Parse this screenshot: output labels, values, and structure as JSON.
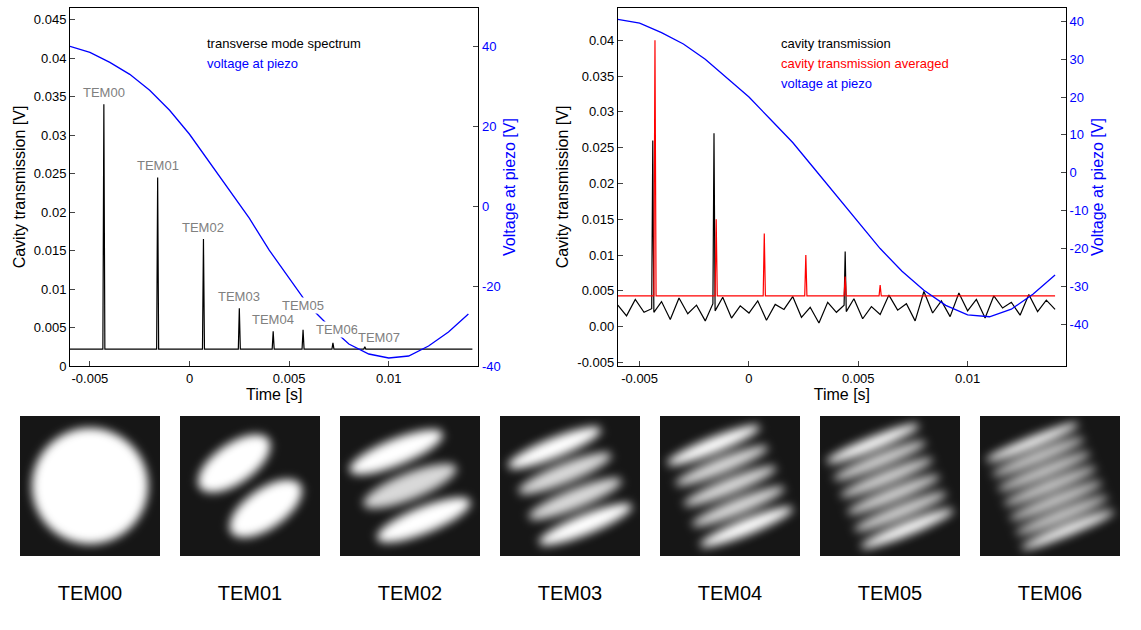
{
  "chart_data": [
    {
      "type": "line",
      "x_label": "Time [s]",
      "y_label": "Cavity transmission [V]",
      "y2_label": "Voltage at piezo [V]",
      "xlim": [
        -0.006,
        0.0145
      ],
      "xticks": [
        -0.005,
        0,
        0.005,
        0.01
      ],
      "ylim": [
        0,
        0.0465
      ],
      "yticks": [
        0,
        0.005,
        0.01,
        0.015,
        0.02,
        0.025,
        0.03,
        0.035,
        0.04,
        0.045
      ],
      "y2lim": [
        -40,
        49.6
      ],
      "y2ticks": [
        -40,
        -20,
        0,
        20,
        40
      ],
      "grid": false,
      "series": [
        {
          "name": "transverse mode spectrum",
          "color": "#000000",
          "x": [
            -0.006,
            -0.00435,
            -0.0043,
            -0.00425,
            -0.00165,
            -0.0016,
            -0.00155,
            0.00065,
            0.0007,
            0.00075,
            0.00245,
            0.0025,
            0.00255,
            0.00415,
            0.0042,
            0.00425,
            0.00565,
            0.0057,
            0.00575,
            0.00715,
            0.0072,
            0.00725,
            0.00875,
            0.0088,
            0.00885,
            0.0142
          ],
          "values": [
            0.0022,
            0.0022,
            0.034,
            0.0022,
            0.0022,
            0.0245,
            0.0022,
            0.0022,
            0.0165,
            0.0022,
            0.0022,
            0.0075,
            0.0022,
            0.0022,
            0.0045,
            0.0022,
            0.0022,
            0.0047,
            0.0022,
            0.0022,
            0.003,
            0.0022,
            0.0022,
            0.0025,
            0.0022,
            0.0022
          ]
        },
        {
          "name": "voltage at piezo",
          "color": "#0000ff",
          "axis": "y2",
          "x": [
            -0.006,
            -0.005,
            -0.004,
            -0.003,
            -0.002,
            -0.001,
            0,
            0.001,
            0.002,
            0.003,
            0.004,
            0.005,
            0.006,
            0.007,
            0.008,
            0.009,
            0.01,
            0.011,
            0.012,
            0.013,
            0.014
          ],
          "values": [
            40,
            38.5,
            36,
            33,
            29,
            24,
            18,
            11,
            4,
            -3,
            -11,
            -18,
            -25,
            -30,
            -34.5,
            -37,
            -38,
            -37.5,
            -35,
            -31.5,
            -27
          ]
        }
      ],
      "annotations": [
        {
          "text": "TEM00",
          "x": -0.0043,
          "y": 0.0355
        },
        {
          "text": "TEM01",
          "x": -0.0016,
          "y": 0.026
        },
        {
          "text": "TEM02",
          "x": 0.0007,
          "y": 0.018
        },
        {
          "text": "TEM03",
          "x": 0.0025,
          "y": 0.009
        },
        {
          "text": "TEM04",
          "x": 0.0042,
          "y": 0.006
        },
        {
          "text": "TEM05",
          "x": 0.0057,
          "y": 0.0078
        },
        {
          "text": "TEM06",
          "x": 0.0074,
          "y": 0.0048
        },
        {
          "text": "TEM07",
          "x": 0.0095,
          "y": 0.0037
        }
      ]
    },
    {
      "type": "line",
      "x_label": "Time [s]",
      "y_label": "Cavity transmission [V]",
      "y2_label": "Voltage at piezo [V]",
      "xlim": [
        -0.006,
        0.0145
      ],
      "xticks": [
        -0.005,
        0,
        0.005,
        0.01
      ],
      "ylim": [
        -0.0055,
        0.0445
      ],
      "yticks": [
        -0.005,
        {
          "value": 0,
          "label": "0.00"
        },
        0.005,
        0.01,
        0.015,
        0.02,
        0.025,
        0.03,
        0.035,
        0.04
      ],
      "y2lim": [
        -51,
        43.5
      ],
      "y2ticks": [
        -40,
        -30,
        -20,
        -10,
        0,
        10,
        20,
        30,
        40
      ],
      "grid": false,
      "series": [
        {
          "name": "cavity transmission",
          "color": "#000000",
          "x": [
            -0.006,
            -0.0056,
            -0.0052,
            -0.0048,
            -0.00445,
            -0.0044,
            -0.00435,
            -0.004,
            -0.0036,
            -0.0032,
            -0.0028,
            -0.0024,
            -0.002,
            -0.00165,
            -0.0016,
            -0.00155,
            -0.0012,
            -0.0008,
            -0.0004,
            0,
            0.0004,
            0.0008,
            0.0012,
            0.0016,
            0.002,
            0.0024,
            0.0028,
            0.0032,
            0.0036,
            0.004,
            0.00435,
            0.0044,
            0.00445,
            0.0048,
            0.0052,
            0.0056,
            0.006,
            0.0064,
            0.0068,
            0.0072,
            0.0076,
            0.008,
            0.0084,
            0.0088,
            0.0092,
            0.0096,
            0.01,
            0.0104,
            0.0108,
            0.0112,
            0.0116,
            0.012,
            0.0124,
            0.0128,
            0.0132,
            0.0136,
            0.014
          ],
          "values": [
            0.003,
            0.0015,
            0.0038,
            0.002,
            0.0025,
            0.026,
            0.002,
            0.0035,
            0.001,
            0.004,
            0.0018,
            0.003,
            0.0008,
            0.0032,
            0.027,
            0.0022,
            0.0041,
            0.0012,
            0.0029,
            0.0019,
            0.0036,
            0.0009,
            0.0031,
            0.0024,
            0.0042,
            0.0013,
            0.0027,
            0.0005,
            0.0034,
            0.002,
            0.003,
            0.0105,
            0.0021,
            0.0039,
            0.0011,
            0.0028,
            0.0017,
            0.0044,
            0.0023,
            0.0032,
            0.0008,
            0.0049,
            0.0019,
            0.0036,
            0.0014,
            0.0047,
            0.0022,
            0.0038,
            0.0012,
            0.0043,
            0.0026,
            0.0034,
            0.0016,
            0.0045,
            0.0021,
            0.0037,
            0.0024
          ]
        },
        {
          "name": "cavity transmission averaged",
          "color": "#ff0000",
          "x": [
            -0.006,
            -0.00435,
            -0.0043,
            -0.00425,
            -0.00155,
            -0.0015,
            -0.00145,
            0.00065,
            0.0007,
            0.00075,
            0.00255,
            0.0026,
            0.00265,
            0.00435,
            0.0044,
            0.00445,
            0.00595,
            0.006,
            0.00605,
            0.014
          ],
          "values": [
            0.0043,
            0.0043,
            0.04,
            0.0043,
            0.0043,
            0.015,
            0.0043,
            0.0043,
            0.013,
            0.0043,
            0.0043,
            0.01,
            0.0043,
            0.0043,
            0.007,
            0.0043,
            0.0043,
            0.0058,
            0.0043,
            0.0043
          ]
        },
        {
          "name": "voltage at piezo",
          "color": "#0000ff",
          "axis": "y2",
          "x": [
            -0.006,
            -0.005,
            -0.004,
            -0.003,
            -0.002,
            -0.001,
            0,
            0.001,
            0.002,
            0.003,
            0.004,
            0.005,
            0.006,
            0.007,
            0.008,
            0.009,
            0.01,
            0.011,
            0.012,
            0.013,
            0.014
          ],
          "values": [
            40.5,
            39.5,
            37,
            34,
            30,
            25,
            20,
            14,
            8,
            1,
            -6,
            -13,
            -20,
            -26,
            -31,
            -35,
            -37.5,
            -38,
            -36,
            -32,
            -27
          ]
        }
      ]
    }
  ],
  "images": {
    "labels": [
      "TEM00",
      "TEM01",
      "TEM02",
      "TEM03",
      "TEM04",
      "TEM05",
      "TEM06"
    ]
  }
}
